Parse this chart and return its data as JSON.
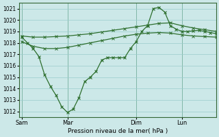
{
  "xlabel": "Pression niveau de la mer( hPa )",
  "bg_color": "#cce8e8",
  "grid_color": "#99cccc",
  "line_color": "#2d6e2d",
  "ylim": [
    1011.5,
    1021.5
  ],
  "yticks": [
    1012,
    1013,
    1014,
    1015,
    1016,
    1017,
    1018,
    1019,
    1020,
    1021
  ],
  "xtick_labels": [
    "Sam",
    "Mar",
    "Dim",
    "Lun"
  ],
  "xtick_pos": [
    0,
    8,
    20,
    28
  ],
  "vline_pos": [
    0,
    8,
    20,
    28
  ],
  "xlim": [
    -0.5,
    34
  ],
  "env1_x": [
    0,
    2,
    4,
    6,
    8,
    10,
    12,
    14,
    16,
    18,
    20,
    22,
    24,
    26,
    28,
    30,
    32,
    34
  ],
  "env1_y": [
    1018.6,
    1018.5,
    1018.5,
    1018.55,
    1018.6,
    1018.7,
    1018.8,
    1018.95,
    1019.1,
    1019.25,
    1019.4,
    1019.55,
    1019.7,
    1019.75,
    1019.5,
    1019.3,
    1019.15,
    1019.0
  ],
  "env2_x": [
    0,
    2,
    4,
    6,
    8,
    10,
    12,
    14,
    16,
    18,
    20,
    22,
    24,
    26,
    28,
    30,
    32,
    34
  ],
  "env2_y": [
    1018.1,
    1017.7,
    1017.5,
    1017.5,
    1017.6,
    1017.8,
    1018.0,
    1018.2,
    1018.4,
    1018.6,
    1018.75,
    1018.85,
    1018.9,
    1018.85,
    1018.7,
    1018.6,
    1018.55,
    1018.5
  ],
  "wavy_x": [
    0,
    1,
    2,
    3,
    4,
    5,
    6,
    7,
    8,
    9,
    10,
    11,
    12,
    13,
    14,
    15,
    16,
    17,
    18,
    19,
    20,
    21,
    22,
    23,
    24,
    25,
    26,
    27,
    28,
    29,
    30,
    31,
    32,
    33,
    34
  ],
  "wavy_y": [
    1018.5,
    1018.0,
    1017.5,
    1016.8,
    1015.2,
    1014.2,
    1013.4,
    1012.4,
    1011.9,
    1012.2,
    1013.2,
    1014.6,
    1015.0,
    1015.5,
    1016.5,
    1016.7,
    1016.7,
    1016.7,
    1016.7,
    1017.5,
    1018.1,
    1019.0,
    1019.5,
    1021.0,
    1021.1,
    1020.7,
    1019.5,
    1019.2,
    1019.0,
    1019.0,
    1019.05,
    1019.1,
    1019.0,
    1018.9,
    1018.8
  ]
}
